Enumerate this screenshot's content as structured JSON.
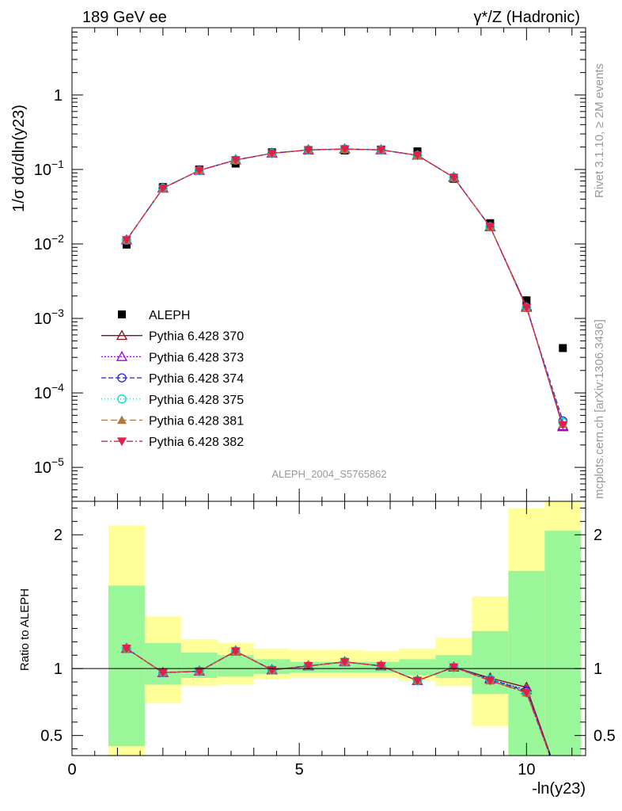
{
  "header": {
    "left": "189 GeV ee",
    "right": "γ*/Z (Hadronic)"
  },
  "side_labels": {
    "rivet": "Rivet 3.1.10, ≥ 2M events",
    "mcplots": "mcplots.cern.ch [arXiv:1306.3436]"
  },
  "analysis_tag": "ALEPH_2004_S5765862",
  "colors": {
    "data": "#000000",
    "p370": "#8b0a1d",
    "p373": "#9a00e0",
    "p374": "#2020e0",
    "p375": "#00d8c0",
    "p381": "#b07840",
    "p382": "#e0204a",
    "band_inner": "#99f799",
    "band_outer": "#ffff99"
  },
  "chart_data": [
    {
      "type": "scatter",
      "panel": "main",
      "ylabel": "1/σ  dσ/dln(y23)",
      "yscale": "log",
      "ylim": [
        3.5e-06,
        8
      ],
      "xlim": [
        0,
        11.3
      ],
      "y_ticks": [
        {
          "value": 1,
          "label": "1"
        },
        {
          "value": 0.1,
          "base": "10",
          "exp": "−1"
        },
        {
          "value": 0.01,
          "base": "10",
          "exp": "−2"
        },
        {
          "value": 0.001,
          "base": "10",
          "exp": "−3"
        },
        {
          "value": 0.0001,
          "base": "10",
          "exp": "−4"
        },
        {
          "value": 1e-05,
          "base": "10",
          "exp": "−5"
        }
      ],
      "x": [
        1.2,
        2.0,
        2.8,
        3.6,
        4.4,
        5.2,
        6.0,
        6.8,
        7.6,
        8.4,
        9.2,
        10.0,
        10.8
      ],
      "series": [
        {
          "name": "ALEPH",
          "key": "data",
          "marker": "square",
          "values": [
            0.0098,
            0.058,
            0.1,
            0.12,
            0.17,
            0.18,
            0.18,
            0.185,
            0.175,
            0.075,
            0.019,
            0.00175,
            0.0004
          ]
        },
        {
          "name": "Pythia 6.428 370",
          "key": "p370",
          "marker": "triangle-open",
          "dash": "",
          "values": [
            0.0113,
            0.056,
            0.097,
            0.134,
            0.165,
            0.183,
            0.188,
            0.183,
            0.155,
            0.078,
            0.017,
            0.00145,
            3.5e-05
          ]
        },
        {
          "name": "Pythia 6.428 373",
          "key": "p373",
          "marker": "triangle-open",
          "dash": "2,2",
          "values": [
            0.0113,
            0.056,
            0.097,
            0.134,
            0.165,
            0.183,
            0.188,
            0.183,
            0.155,
            0.078,
            0.017,
            0.0014,
            3.6e-05
          ]
        },
        {
          "name": "Pythia 6.428 374",
          "key": "p374",
          "marker": "circle-open",
          "dash": "6,3",
          "values": [
            0.0113,
            0.056,
            0.097,
            0.134,
            0.165,
            0.183,
            0.188,
            0.183,
            0.155,
            0.078,
            0.017,
            0.0014,
            4.2e-05
          ]
        },
        {
          "name": "Pythia 6.428 375",
          "key": "p375",
          "marker": "circle-open",
          "dash": "1,3",
          "values": [
            0.0113,
            0.056,
            0.097,
            0.134,
            0.165,
            0.183,
            0.188,
            0.183,
            0.155,
            0.078,
            0.017,
            0.0014,
            4e-05
          ]
        },
        {
          "name": "Pythia 6.428 381",
          "key": "p381",
          "marker": "triangle-filled",
          "dash": "8,4",
          "values": [
            0.0113,
            0.056,
            0.097,
            0.134,
            0.165,
            0.183,
            0.188,
            0.183,
            0.155,
            0.078,
            0.017,
            0.0014,
            3.8e-05
          ]
        },
        {
          "name": "Pythia 6.428 382",
          "key": "p382",
          "marker": "triangle-down-filled",
          "dash": "8,3,2,3",
          "values": [
            0.0113,
            0.056,
            0.097,
            0.134,
            0.165,
            0.183,
            0.188,
            0.183,
            0.155,
            0.078,
            0.017,
            0.0014,
            3.7e-05
          ]
        }
      ]
    },
    {
      "type": "line",
      "panel": "ratio",
      "ylabel": "Ratio to ALEPH",
      "xlabel": "-ln(y23)",
      "xlim": [
        0,
        11.3
      ],
      "ylim": [
        0.35,
        2.25
      ],
      "x_ticks": [
        0,
        5,
        10
      ],
      "y_ticks": [
        0.5,
        1,
        2
      ],
      "bands": {
        "edges": [
          0.8,
          1.6,
          2.4,
          3.2,
          4.0,
          4.8,
          5.6,
          6.4,
          7.2,
          8.0,
          8.8,
          9.6,
          10.4,
          11.2
        ],
        "inner_low": [
          0.42,
          0.88,
          0.93,
          0.94,
          0.96,
          0.97,
          0.97,
          0.97,
          0.95,
          0.93,
          0.81,
          0.3,
          0.3
        ],
        "inner_high": [
          1.62,
          1.19,
          1.12,
          1.1,
          1.07,
          1.05,
          1.05,
          1.05,
          1.07,
          1.1,
          1.28,
          1.73,
          2.03
        ],
        "outer_low": [
          0.3,
          0.74,
          0.87,
          0.88,
          0.92,
          0.93,
          0.93,
          0.93,
          0.91,
          0.87,
          0.57,
          0.3,
          0.3
        ],
        "outer_high": [
          2.07,
          1.39,
          1.22,
          1.19,
          1.15,
          1.14,
          1.14,
          1.13,
          1.15,
          1.23,
          1.54,
          2.2,
          2.3
        ]
      },
      "x": [
        1.2,
        2.0,
        2.8,
        3.6,
        4.4,
        5.2,
        6.0,
        6.8,
        7.6,
        8.4,
        9.2,
        10.0,
        10.8
      ],
      "series": [
        {
          "name": "Pythia 6.428 370",
          "key": "p370",
          "marker": "triangle-open",
          "dash": "",
          "values": [
            1.15,
            0.97,
            0.98,
            1.13,
            0.99,
            1.02,
            1.05,
            1.02,
            0.91,
            1.01,
            0.93,
            0.86,
            0.09
          ]
        },
        {
          "name": "Pythia 6.428 373",
          "key": "p373",
          "marker": "triangle-open",
          "dash": "2,2",
          "values": [
            1.15,
            0.97,
            0.98,
            1.13,
            0.99,
            1.02,
            1.05,
            1.02,
            0.91,
            1.01,
            0.92,
            0.84,
            0.09
          ]
        },
        {
          "name": "Pythia 6.428 374",
          "key": "p374",
          "marker": "circle-open",
          "dash": "6,3",
          "values": [
            1.15,
            0.97,
            0.98,
            1.13,
            0.99,
            1.02,
            1.05,
            1.02,
            0.91,
            1.01,
            0.92,
            0.83,
            0.1
          ]
        },
        {
          "name": "Pythia 6.428 375",
          "key": "p375",
          "marker": "circle-open",
          "dash": "1,3",
          "values": [
            1.15,
            0.97,
            0.98,
            1.13,
            0.99,
            1.02,
            1.05,
            1.02,
            0.91,
            1.01,
            0.92,
            0.82,
            0.1
          ]
        },
        {
          "name": "Pythia 6.428 381",
          "key": "p381",
          "marker": "triangle-filled",
          "dash": "8,4",
          "values": [
            1.15,
            0.97,
            0.98,
            1.13,
            0.99,
            1.02,
            1.05,
            1.02,
            0.91,
            1.01,
            0.91,
            0.82,
            0.09
          ]
        },
        {
          "name": "Pythia 6.428 382",
          "key": "p382",
          "marker": "triangle-down-filled",
          "dash": "8,3,2,3",
          "values": [
            1.15,
            0.97,
            0.98,
            1.13,
            0.99,
            1.02,
            1.05,
            1.02,
            0.91,
            1.01,
            0.91,
            0.82,
            0.09
          ]
        }
      ]
    }
  ]
}
